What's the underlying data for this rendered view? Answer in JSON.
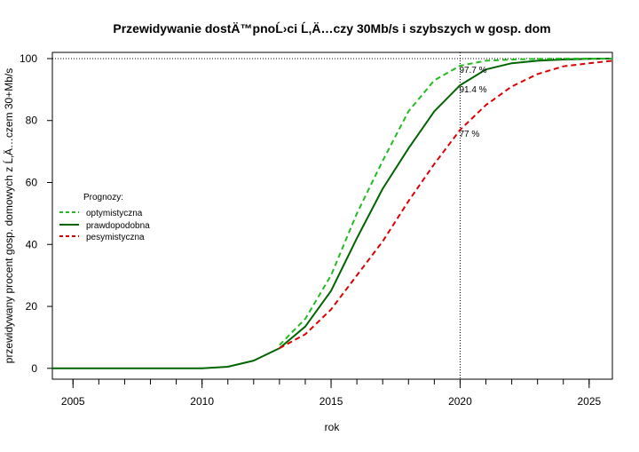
{
  "chart_data": {
    "type": "line",
    "title": "Przewidywanie dostÄ™pnoĹ›ci Ĺ‚Ä…czy 30Mb/s i szybszych w gosp. dom",
    "xlabel": "rok",
    "ylabel": "przewidywany procent gosp. domowych z Ĺ‚Ä…czem 30+Mb/s",
    "xlim": [
      2004.2,
      2025.9
    ],
    "ylim": [
      -3.5,
      102
    ],
    "x_ticks": [
      2005,
      2010,
      2015,
      2020,
      2025
    ],
    "x_minor_ticks": [
      2005,
      2006,
      2007,
      2008,
      2009,
      2010,
      2011,
      2012,
      2013,
      2014,
      2015,
      2016,
      2017,
      2018,
      2019,
      2020,
      2021,
      2022,
      2023,
      2024,
      2025
    ],
    "y_ticks": [
      0,
      20,
      40,
      60,
      80,
      100
    ],
    "x": [
      2004.2,
      2005,
      2006,
      2007,
      2008,
      2009,
      2010,
      2011,
      2012,
      2013,
      2014,
      2015,
      2016,
      2017,
      2018,
      2019,
      2020,
      2021,
      2022,
      2023,
      2024,
      2025,
      2025.9
    ],
    "legend": {
      "title": "Prognozy:",
      "position": "center-left",
      "entries": [
        "optymistyczna",
        "prawdopodobna",
        "pesymistyczna"
      ]
    },
    "series": [
      {
        "name": "prawdopodobna",
        "color": "#006400",
        "style": "solid",
        "values": [
          0,
          0,
          0,
          0,
          0,
          0,
          0,
          0.5,
          2.5,
          6.5,
          13.5,
          25,
          42,
          58,
          71,
          83,
          91.4,
          96.5,
          98.5,
          99.3,
          99.7,
          99.9,
          100
        ]
      },
      {
        "name": "optymistyczna",
        "color": "#22bb22",
        "style": "dashed",
        "values": [
          null,
          null,
          null,
          null,
          null,
          null,
          null,
          null,
          null,
          7.5,
          16,
          30,
          50,
          67,
          83,
          93,
          97.7,
          99.3,
          99.7,
          99.9,
          100,
          100,
          100
        ]
      },
      {
        "name": "pesymistyczna",
        "color": "#dd0000",
        "style": "dashed",
        "values": [
          null,
          null,
          null,
          null,
          null,
          null,
          null,
          null,
          null,
          6.5,
          11,
          19,
          30,
          41,
          54,
          66,
          77,
          85,
          91,
          95,
          97.5,
          98.5,
          99.3
        ]
      }
    ],
    "reference_lines": {
      "horizontal_y": 100,
      "vertical_x": 2020,
      "style": "dotted"
    },
    "annotations": [
      {
        "x": 2020,
        "y": 97.7,
        "text": "97.7 %"
      },
      {
        "x": 2020,
        "y": 91.4,
        "text": "91.4 %"
      },
      {
        "x": 2020,
        "y": 77,
        "text": "77 %"
      }
    ]
  }
}
